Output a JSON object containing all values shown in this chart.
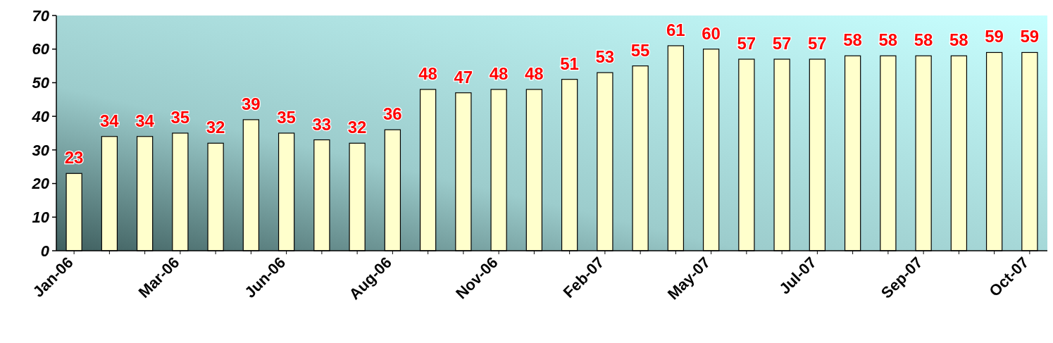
{
  "chart_data": {
    "type": "bar",
    "categories": [
      "Jan-06",
      null,
      null,
      "Mar-06",
      null,
      null,
      "Jun-06",
      null,
      null,
      "Aug-06",
      null,
      null,
      "Nov-06",
      null,
      null,
      "Feb-07",
      null,
      null,
      "May-07",
      null,
      null,
      "Jul-07",
      null,
      null,
      "Sep-07",
      null,
      null,
      "Oct-07"
    ],
    "values": [
      23,
      34,
      34,
      35,
      32,
      39,
      35,
      33,
      32,
      36,
      48,
      47,
      48,
      48,
      51,
      53,
      55,
      61,
      60,
      57,
      57,
      57,
      58,
      58,
      58,
      58,
      59,
      59
    ],
    "color": "#ffffcc",
    "ylim": [
      0,
      70
    ],
    "yticks": [
      0,
      10,
      20,
      30,
      40,
      50,
      60,
      70
    ],
    "data_labels": true,
    "grid": false
  }
}
